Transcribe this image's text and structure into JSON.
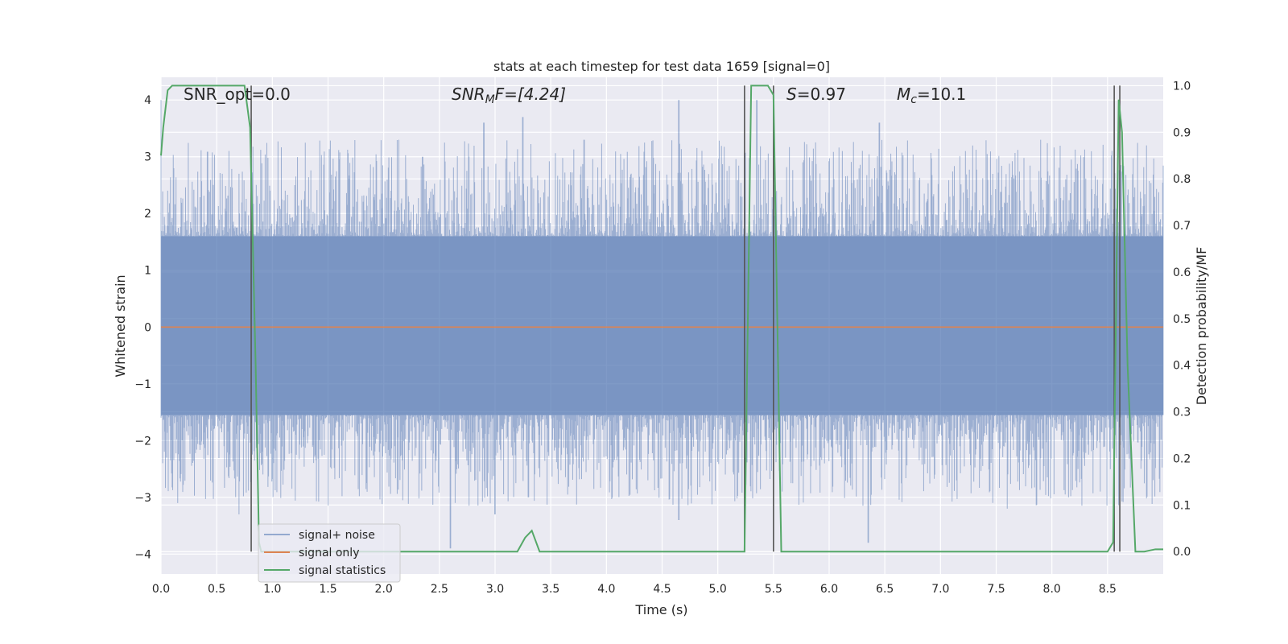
{
  "chart_data": {
    "type": "line",
    "title": "stats at each timestep for test data 1659 [signal=0]",
    "xlabel": "Time (s)",
    "ylabel": "Whitened strain",
    "y2label": "Detection probability/MF",
    "xlim": [
      0,
      9.0
    ],
    "ylim": [
      -4.35,
      4.4
    ],
    "y2lim": [
      -0.048,
      1.018
    ],
    "x_ticks": [
      0.0,
      0.5,
      1.0,
      1.5,
      2.0,
      2.5,
      3.0,
      3.5,
      4.0,
      4.5,
      5.0,
      5.5,
      6.0,
      6.5,
      7.0,
      7.5,
      8.0,
      8.5
    ],
    "x_tick_labels": [
      "0.0",
      "0.5",
      "1.0",
      "1.5",
      "2.0",
      "2.5",
      "3.0",
      "3.5",
      "4.0",
      "4.5",
      "5.0",
      "5.5",
      "6.0",
      "6.5",
      "7.0",
      "7.5",
      "8.0",
      "8.5"
    ],
    "y_ticks": [
      -4,
      -3,
      -2,
      -1,
      0,
      1,
      2,
      3,
      4
    ],
    "y_tick_labels": [
      "−4",
      "−3",
      "−2",
      "−1",
      "0",
      "1",
      "2",
      "3",
      "4"
    ],
    "y2_ticks": [
      0.0,
      0.1,
      0.2,
      0.3,
      0.4,
      0.5,
      0.6,
      0.7,
      0.8,
      0.9,
      1.0
    ],
    "y2_tick_labels": [
      "0.0",
      "0.1",
      "0.2",
      "0.3",
      "0.4",
      "0.5",
      "0.6",
      "0.7",
      "0.8",
      "0.9",
      "1.0"
    ],
    "grid": true,
    "legend_position": "lower-left",
    "colors": {
      "background": "#eaeaf2",
      "grid": "#ffffff",
      "noise": "#4c72b0",
      "signal": "#dd8452",
      "stats": "#55a868",
      "vline": "#555555"
    },
    "series": [
      {
        "name": "signal+ noise",
        "style": "dense noise band",
        "band_core": [
          -1.55,
          1.6
        ],
        "peaks_positive": [
          [
            0.0,
            4.0
          ],
          [
            0.55,
            2.7
          ],
          [
            0.7,
            2.7
          ],
          [
            1.2,
            2.5
          ],
          [
            2.35,
            3.0
          ],
          [
            2.9,
            3.6
          ],
          [
            3.25,
            3.7
          ],
          [
            3.8,
            3.3
          ],
          [
            4.65,
            4.0
          ],
          [
            5.35,
            4.0
          ],
          [
            6.45,
            3.6
          ],
          [
            7.9,
            3.3
          ],
          [
            8.85,
            3.2
          ]
        ],
        "peaks_negative": [
          [
            0.15,
            -3.1
          ],
          [
            0.7,
            -3.3
          ],
          [
            1.5,
            -3.0
          ],
          [
            2.6,
            -3.9
          ],
          [
            3.0,
            -3.3
          ],
          [
            3.3,
            -3.0
          ],
          [
            4.65,
            -3.4
          ],
          [
            6.35,
            -3.8
          ],
          [
            7.6,
            -3.2
          ],
          [
            8.15,
            -3.0
          ]
        ]
      },
      {
        "name": "signal only",
        "x": [
          0.0,
          9.0
        ],
        "values": [
          0.0,
          0.0
        ]
      },
      {
        "name": "signal statistics",
        "axis": "right",
        "x": [
          0.0,
          0.02,
          0.06,
          0.1,
          0.7,
          0.75,
          0.8,
          0.85,
          0.88,
          0.9,
          0.95,
          2.5,
          2.8,
          2.9,
          3.2,
          3.27,
          3.33,
          3.4,
          4.3,
          5.0,
          5.24,
          5.3,
          5.45,
          5.5,
          5.57,
          5.65,
          8.5,
          8.55,
          8.6,
          8.63,
          8.68,
          8.75,
          8.83,
          8.93,
          9.0
        ],
        "values": [
          0.85,
          0.91,
          0.99,
          1.0,
          1.0,
          1.0,
          0.91,
          0.4,
          0.02,
          0.0,
          0.0,
          0.0,
          0.0,
          0.0,
          0.0,
          0.03,
          0.045,
          0.0,
          0.0,
          0.0,
          0.0,
          1.0,
          1.0,
          0.98,
          0.0,
          0.0,
          0.0,
          0.02,
          0.97,
          0.9,
          0.4,
          0.0,
          0.0,
          0.005,
          0.005
        ]
      }
    ],
    "vertical_lines": [
      0.81,
      5.24,
      5.5,
      8.56,
      8.61
    ],
    "annotations": {
      "snr_opt": "SNR_opt=0.0",
      "snr_mf_base": "SNR",
      "snr_mf_sub": "M",
      "snr_mf_rest": "F=[4.24]",
      "s_base": "S",
      "s_rest": "=0.97",
      "mc_base": "M",
      "mc_sub": "c",
      "mc_rest": "=10.1"
    }
  }
}
